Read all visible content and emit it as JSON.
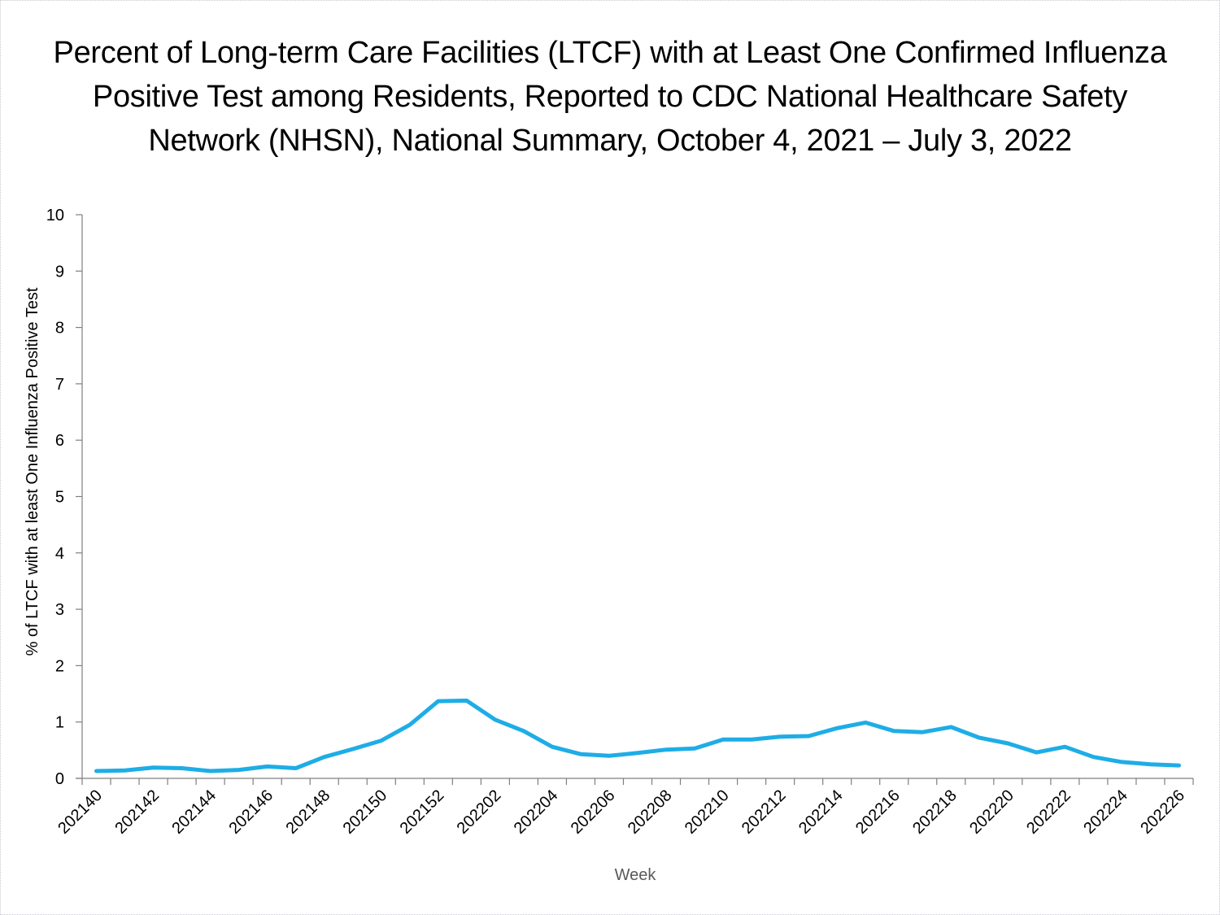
{
  "chart_data": {
    "type": "line",
    "title_lines": [
      "Percent of Long-term Care Facilities (LTCF) with at Least One Confirmed Influenza",
      "Positive Test among Residents, Reported to CDC National Healthcare Safety",
      "Network (NHSN), National Summary, October 4, 2021 – July 3, 2022"
    ],
    "xlabel": "Week",
    "ylabel": "% of LTCF with at least One Influenza Positive Test",
    "ylim": [
      0,
      10
    ],
    "yticks": [
      "0",
      "1",
      "2",
      "3",
      "4",
      "5",
      "6",
      "7",
      "8",
      "9",
      "10"
    ],
    "grid": false,
    "legend": "none",
    "line_color": "#1EADE6",
    "x": [
      "202140",
      "202141",
      "202142",
      "202143",
      "202144",
      "202145",
      "202146",
      "202147",
      "202148",
      "202149",
      "202150",
      "202151",
      "202152",
      "202201",
      "202202",
      "202203",
      "202204",
      "202205",
      "202206",
      "202207",
      "202208",
      "202209",
      "202210",
      "202211",
      "202212",
      "202213",
      "202214",
      "202215",
      "202216",
      "202217",
      "202218",
      "202219",
      "202220",
      "202221",
      "202222",
      "202223",
      "202224",
      "202225",
      "202226"
    ],
    "xtick_labels": [
      "202140",
      "202142",
      "202144",
      "202146",
      "202148",
      "202150",
      "202152",
      "202202",
      "202204",
      "202206",
      "202208",
      "202210",
      "202212",
      "202214",
      "202216",
      "202218",
      "202220",
      "202222",
      "202224",
      "202226"
    ],
    "series": [
      {
        "name": "% of LTCF with at least One Influenza Positive Test",
        "values": [
          0.13,
          0.14,
          0.19,
          0.18,
          0.13,
          0.15,
          0.21,
          0.18,
          0.38,
          0.52,
          0.67,
          0.95,
          1.37,
          1.38,
          1.04,
          0.84,
          0.56,
          0.43,
          0.4,
          0.45,
          0.51,
          0.53,
          0.69,
          0.69,
          0.74,
          0.75,
          0.89,
          0.99,
          0.84,
          0.82,
          0.91,
          0.72,
          0.62,
          0.46,
          0.56,
          0.38,
          0.29,
          0.25,
          0.23
        ]
      }
    ]
  }
}
